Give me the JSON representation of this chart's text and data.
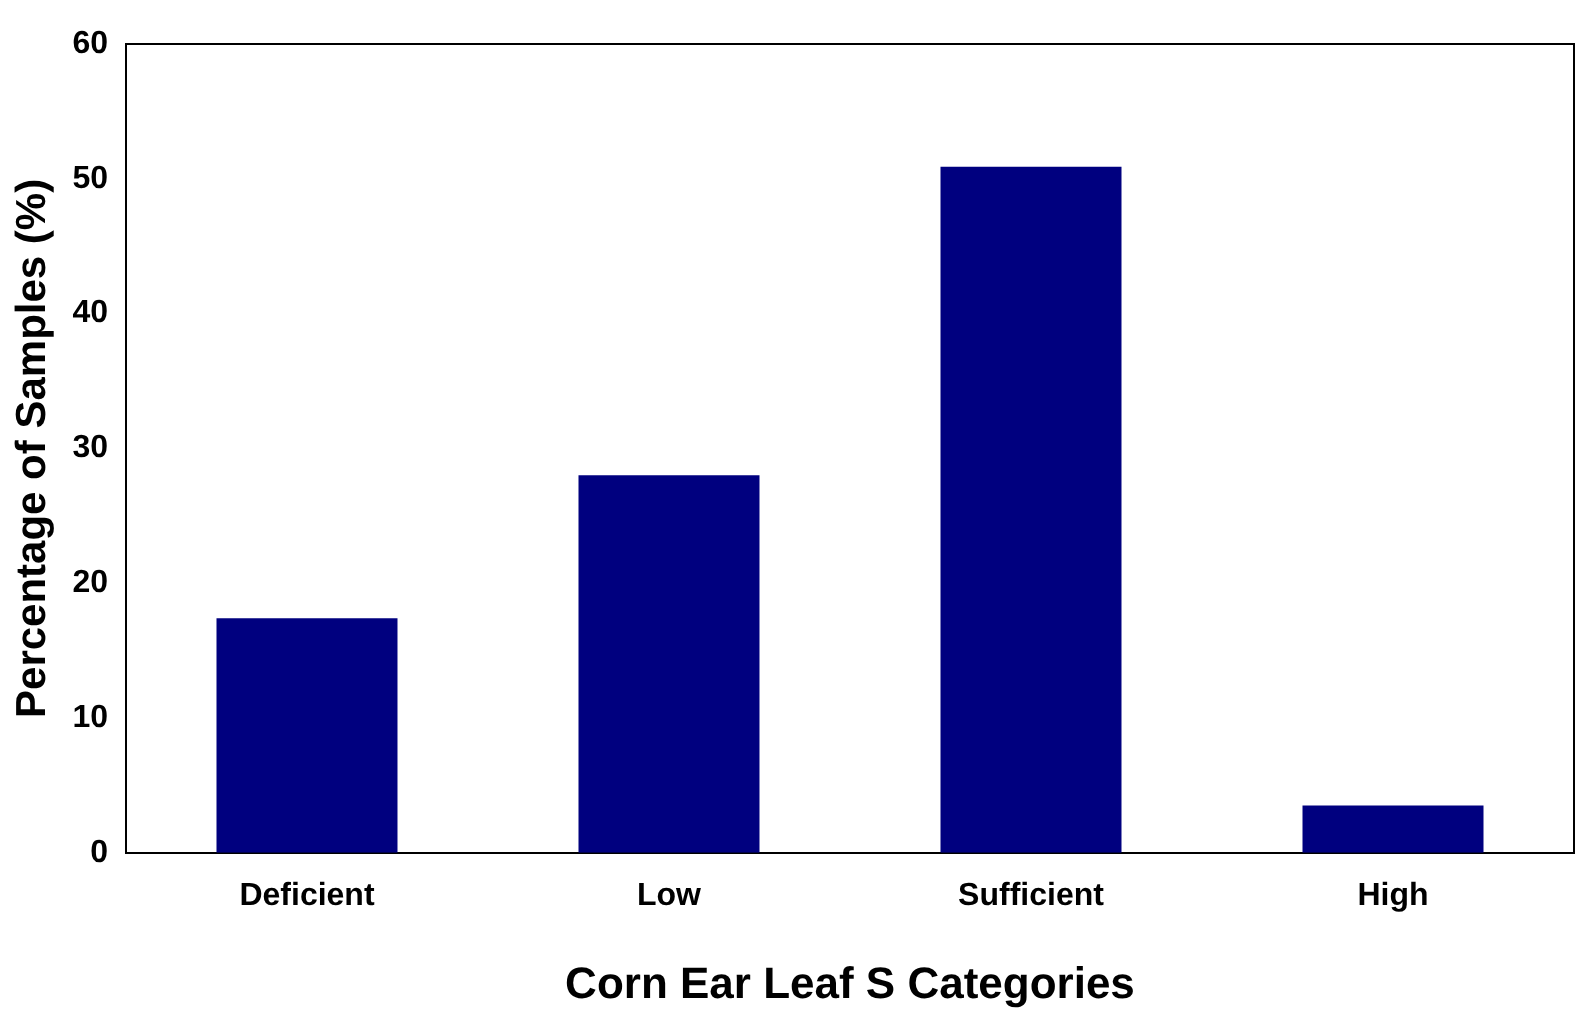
{
  "chart_data": {
    "type": "bar",
    "xlabel": "Corn Ear Leaf S Categories",
    "ylabel": "Percentage of Samples (%)",
    "categories": [
      "Deficient",
      "Low",
      "Sufficient",
      "High"
    ],
    "values": [
      17.4,
      28,
      50.9,
      3.5
    ],
    "color": "#00007f",
    "ylim": [
      0,
      60
    ],
    "yticks": [
      0,
      10,
      20,
      30,
      40,
      50,
      60
    ],
    "grid": false,
    "legend": false
  }
}
